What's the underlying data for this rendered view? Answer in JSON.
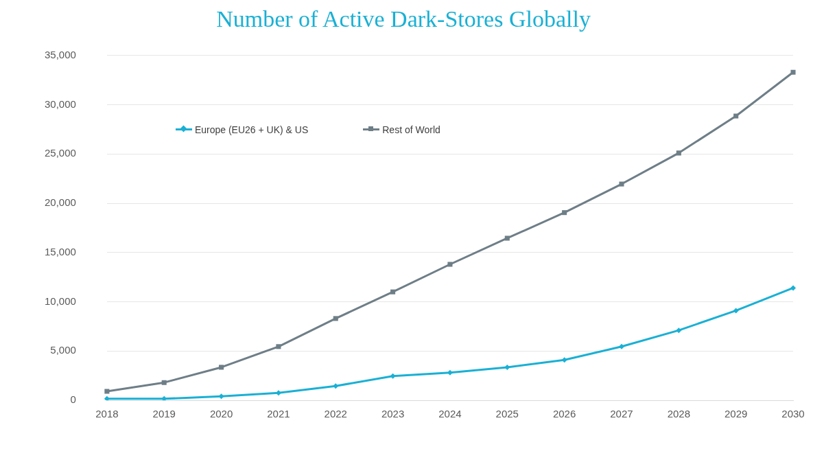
{
  "chart_data": {
    "type": "line",
    "title": "Number of Active Dark-Stores Globally",
    "categories": [
      "2018",
      "2019",
      "2020",
      "2021",
      "2022",
      "2023",
      "2024",
      "2025",
      "2026",
      "2027",
      "2028",
      "2029",
      "2030"
    ],
    "series": [
      {
        "name": "Europe (EU26 + UK) & US",
        "color": "#1ab0d4",
        "marker": "diamond",
        "values": [
          150,
          150,
          400,
          750,
          1450,
          2450,
          2800,
          3350,
          4100,
          5450,
          7100,
          9100,
          11400
        ]
      },
      {
        "name": "Rest of World",
        "color": "#6e7e87",
        "marker": "square",
        "values": [
          900,
          1800,
          3350,
          5450,
          8300,
          11000,
          13800,
          16450,
          19050,
          21950,
          25100,
          28850,
          33300
        ]
      }
    ],
    "ylim": [
      0,
      35000
    ],
    "yticks": [
      0,
      {
        "value": 5000,
        "label": "5,000"
      },
      {
        "value": 10000,
        "label": "10,000"
      },
      {
        "value": 15000,
        "label": "15,000"
      },
      {
        "value": 20000,
        "label": "20,000"
      },
      {
        "value": 25000,
        "label": "25,000"
      },
      {
        "value": 30000,
        "label": "30,000"
      },
      {
        "value": 35000,
        "label": "35,000"
      }
    ],
    "grid": "y",
    "legend": "top left",
    "line_style": "solid"
  }
}
